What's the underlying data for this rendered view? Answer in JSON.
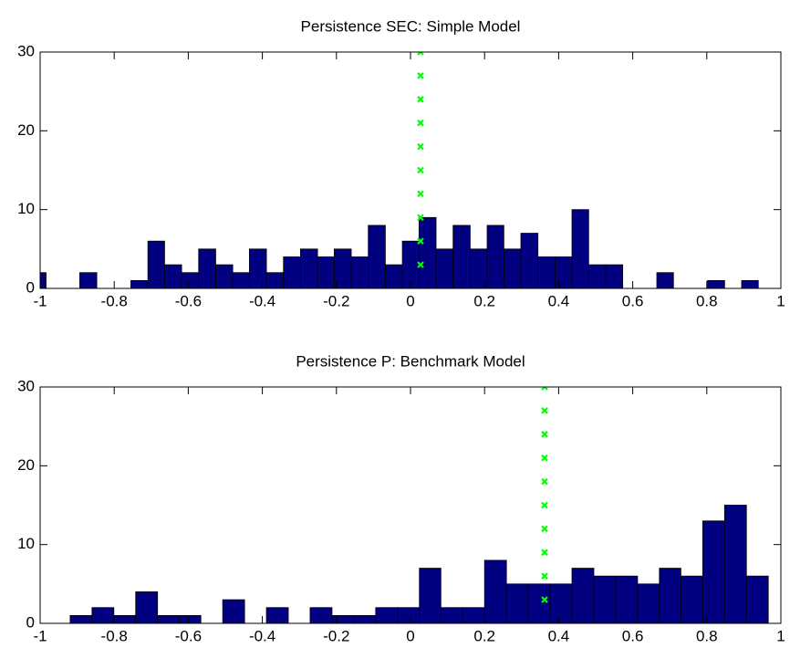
{
  "chart_data": [
    {
      "type": "histogram",
      "title": "Persistence SEC: Simple Model",
      "bins": [
        -1.03,
        -0.984,
        -0.938,
        -0.893,
        -0.847,
        -0.801,
        -0.755,
        -0.709,
        -0.664,
        -0.618,
        -0.572,
        -0.526,
        -0.48,
        -0.435,
        -0.389,
        -0.343,
        -0.297,
        -0.251,
        -0.206,
        -0.16,
        -0.114,
        -0.068,
        -0.022,
        0.023,
        0.069,
        0.115,
        0.161,
        0.207,
        0.252,
        0.298,
        0.344,
        0.39,
        0.436,
        0.481,
        0.527,
        0.573,
        0.619,
        0.665,
        0.71,
        0.756,
        0.802,
        0.848,
        0.894,
        0.939
      ],
      "values": [
        2,
        0,
        0,
        2,
        0,
        0,
        1,
        6,
        3,
        2,
        5,
        3,
        2,
        5,
        2,
        4,
        5,
        4,
        5,
        4,
        8,
        3,
        6,
        9,
        5,
        8,
        5,
        8,
        5,
        7,
        4,
        4,
        10,
        3,
        3,
        0,
        0,
        2,
        0,
        0,
        1,
        0,
        1
      ],
      "color": "#000080",
      "overlay": {
        "type": "scatter",
        "marker": "x",
        "color": "#00ff00",
        "x": [
          0.027,
          0.027,
          0.027,
          0.027,
          0.027,
          0.027,
          0.027,
          0.027,
          0.027,
          0.027
        ],
        "values": [
          3,
          6,
          9,
          12,
          15,
          18,
          21,
          24,
          27,
          30
        ]
      },
      "xlim": [
        -1,
        1
      ],
      "ylim": [
        0,
        30
      ],
      "xticks": [
        -1,
        -0.8,
        -0.6,
        -0.4,
        -0.2,
        0,
        0.2,
        0.4,
        0.6,
        0.8,
        1
      ],
      "yticks": [
        0,
        10,
        20,
        30
      ]
    },
    {
      "type": "histogram",
      "title": "Persistence P: Benchmark Model",
      "bins": [
        -0.919,
        -0.86,
        -0.801,
        -0.742,
        -0.683,
        -0.625,
        -0.566,
        -0.507,
        -0.448,
        -0.389,
        -0.33,
        -0.271,
        -0.212,
        -0.153,
        -0.094,
        -0.035,
        0.024,
        0.082,
        0.141,
        0.2,
        0.259,
        0.318,
        0.377,
        0.436,
        0.495,
        0.554,
        0.613,
        0.672,
        0.73,
        0.789,
        0.848,
        0.907,
        0.966
      ],
      "values": [
        1,
        2,
        1,
        4,
        1,
        1,
        0,
        3,
        0,
        2,
        0,
        2,
        1,
        1,
        2,
        2,
        7,
        2,
        2,
        8,
        5,
        5,
        5,
        7,
        6,
        6,
        5,
        7,
        6,
        13,
        15,
        6
      ],
      "color": "#000080",
      "overlay": {
        "type": "scatter",
        "marker": "x",
        "color": "#00ff00",
        "x": [
          0.362,
          0.362,
          0.362,
          0.362,
          0.362,
          0.362,
          0.362,
          0.362,
          0.362,
          0.362
        ],
        "values": [
          3,
          6,
          9,
          12,
          15,
          18,
          21,
          24,
          27,
          30
        ]
      },
      "xlim": [
        -1,
        1
      ],
      "ylim": [
        0,
        30
      ],
      "xticks": [
        -1,
        -0.8,
        -0.6,
        -0.4,
        -0.2,
        0,
        0.2,
        0.4,
        0.6,
        0.8,
        1
      ],
      "yticks": [
        0,
        10,
        20,
        30
      ]
    }
  ]
}
